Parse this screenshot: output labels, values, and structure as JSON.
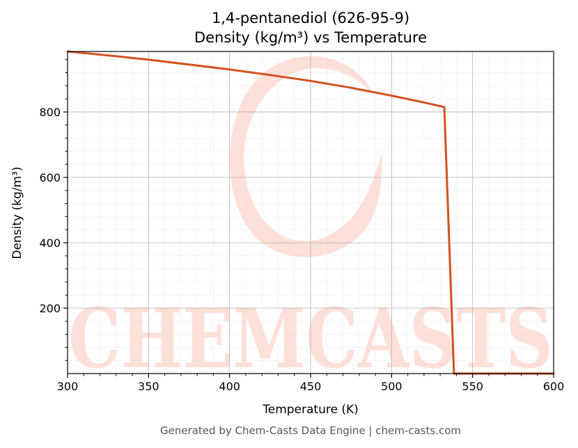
{
  "chart_data": {
    "type": "line",
    "title": "1,4-pentanediol (626-95-9)",
    "subtitle": "Density (kg/m³) vs Temperature",
    "xlabel": "Temperature (K)",
    "ylabel": "Density (kg/m³)",
    "xlim": [
      300,
      600
    ],
    "ylim": [
      0,
      985
    ],
    "xticks": [
      300,
      350,
      400,
      450,
      500,
      550,
      600
    ],
    "yticks": [
      200,
      400,
      600,
      800
    ],
    "grid": true,
    "minor_grid": true,
    "series": [
      {
        "color": "#d4501e",
        "x": [
          300,
          325,
          350,
          375,
          400,
          425,
          450,
          475,
          500,
          520,
          532.5,
          538.5,
          545,
          560,
          580,
          600
        ],
        "y": [
          985,
          973,
          960,
          945,
          930,
          913,
          895,
          874,
          850,
          829,
          815,
          0,
          0,
          0,
          0,
          0
        ]
      }
    ]
  },
  "footer": "Generated by Chem-Casts Data Engine | chem-casts.com",
  "watermark": "CHEMCASTS"
}
